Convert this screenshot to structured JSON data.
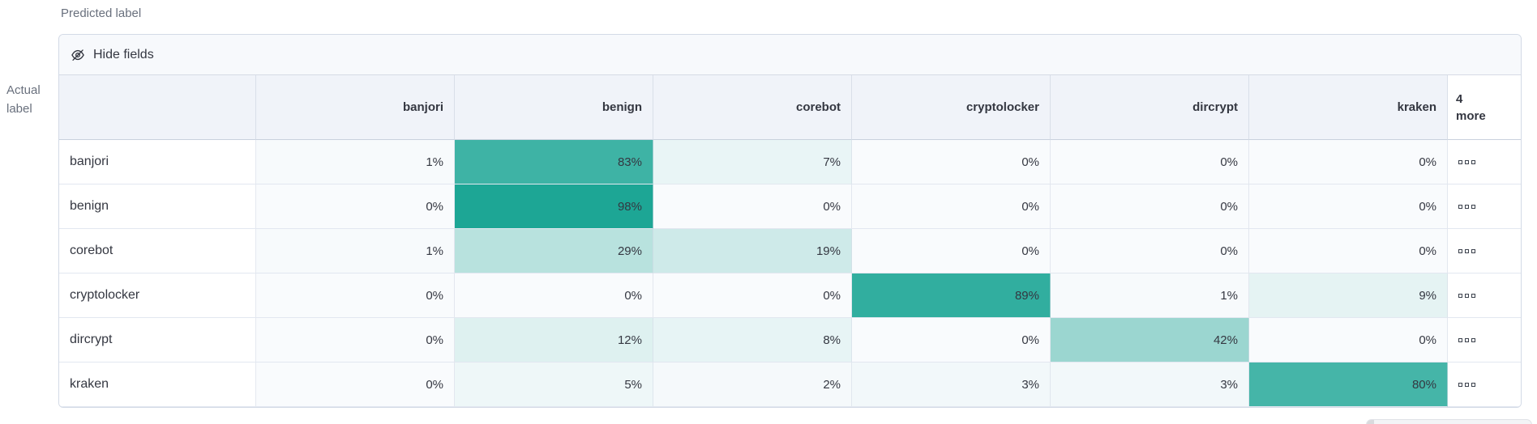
{
  "axes": {
    "predicted_label": "Predicted label",
    "actual_label_line1": "Actual",
    "actual_label_line2": "label"
  },
  "toolbar": {
    "hide_fields_label": "Hide fields",
    "icon": "eye-slash-icon"
  },
  "grid": {
    "columns": [
      "banjori",
      "benign",
      "corebot",
      "cryptolocker",
      "dircrypt",
      "kraken"
    ],
    "more_column": {
      "line1": "4",
      "line2": "more"
    },
    "rows": [
      {
        "label": "banjori",
        "values": [
          1,
          83,
          7,
          0,
          0,
          0
        ]
      },
      {
        "label": "benign",
        "values": [
          0,
          98,
          0,
          0,
          0,
          0
        ]
      },
      {
        "label": "corebot",
        "values": [
          1,
          29,
          19,
          0,
          0,
          0
        ]
      },
      {
        "label": "cryptolocker",
        "values": [
          0,
          0,
          0,
          89,
          1,
          9
        ]
      },
      {
        "label": "dircrypt",
        "values": [
          0,
          12,
          8,
          0,
          42,
          0
        ]
      },
      {
        "label": "kraken",
        "values": [
          0,
          5,
          2,
          3,
          3,
          80
        ]
      }
    ],
    "value_suffix": "%",
    "more_actions_icon": "boxes-horizontal-icon"
  },
  "chart_data": {
    "type": "heatmap",
    "x_label": "Predicted label",
    "y_label": "Actual label",
    "x_categories": [
      "banjori",
      "benign",
      "corebot",
      "cryptolocker",
      "dircrypt",
      "kraken"
    ],
    "y_categories": [
      "banjori",
      "benign",
      "corebot",
      "cryptolocker",
      "dircrypt",
      "kraken"
    ],
    "values_percent": [
      [
        1,
        83,
        7,
        0,
        0,
        0
      ],
      [
        0,
        98,
        0,
        0,
        0,
        0
      ],
      [
        1,
        29,
        19,
        0,
        0,
        0
      ],
      [
        0,
        0,
        0,
        89,
        1,
        9
      ],
      [
        0,
        12,
        8,
        0,
        42,
        0
      ],
      [
        0,
        5,
        2,
        3,
        3,
        80
      ]
    ],
    "hidden_columns_note": "4 more",
    "color_scale": {
      "domain": [
        0,
        100
      ],
      "min_color": "#f9fbfd",
      "max_color": "#18a493"
    }
  },
  "colors": {
    "heat_zero": "#f9fbfd",
    "heat_base": "#18a493",
    "cell_text": "#343741",
    "muted_text": "#69707d",
    "panel_border": "#d3dae6"
  }
}
